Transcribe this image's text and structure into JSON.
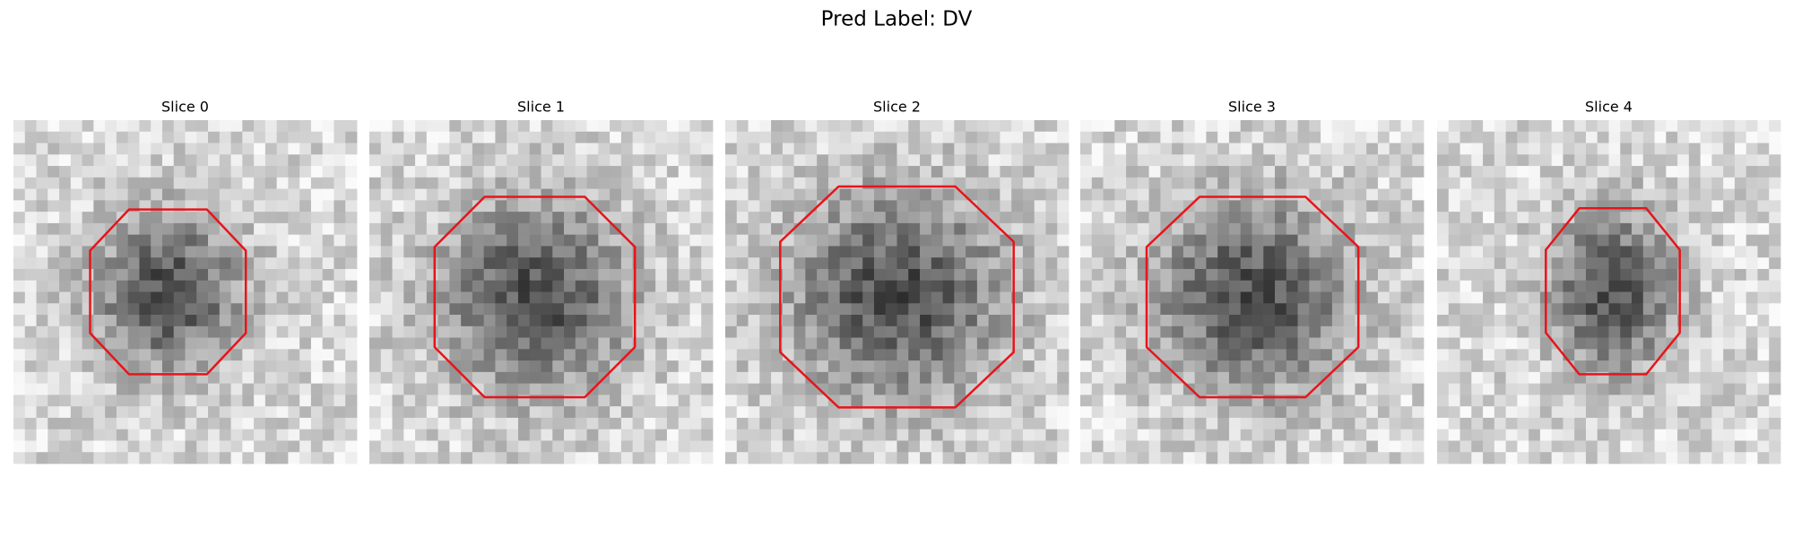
{
  "title": "Pred Label: DV",
  "panels": [
    {
      "title": "Slice 0"
    },
    {
      "title": "Slice 1"
    },
    {
      "title": "Slice 2"
    },
    {
      "title": "Slice 3"
    },
    {
      "title": "Slice 4"
    }
  ]
}
